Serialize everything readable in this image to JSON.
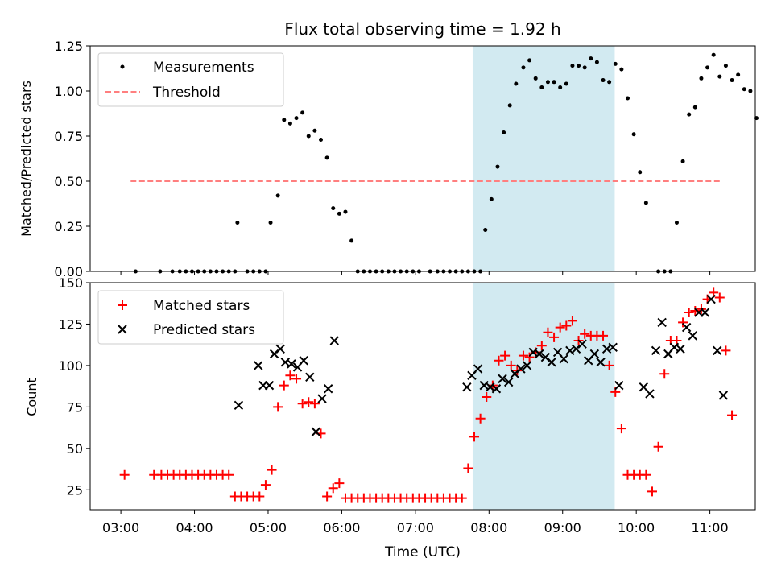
{
  "title": "Flux total observing time = 1.92 h",
  "xlabel": "Time (UTC)",
  "xticks": [
    "03:00",
    "04:00",
    "05:00",
    "06:00",
    "07:00",
    "08:00",
    "09:00",
    "10:00",
    "11:00"
  ],
  "colors": {
    "measurements": "#000000",
    "threshold": "#ff7f7f",
    "matched": "#ff0000",
    "predicted": "#000000",
    "highlight": "#add8e6"
  },
  "chart_data": [
    {
      "type": "scatter",
      "ylabel": "Matched/Predicted stars",
      "ylim": [
        0,
        1.25
      ],
      "yticks": [
        "0.00",
        "0.25",
        "0.50",
        "0.75",
        "1.00",
        "1.25"
      ],
      "xlim": [
        "02:35",
        "11:37"
      ],
      "highlight_span": [
        "07:47",
        "09:42"
      ],
      "legend": {
        "position": "upper-left",
        "entries": [
          "Measurements",
          "Threshold"
        ]
      },
      "threshold": {
        "name": "Threshold",
        "value": 0.5,
        "x_range": [
          "03:08",
          "11:08"
        ]
      },
      "series": [
        {
          "name": "Measurements",
          "points": [
            [
              "03:12",
              0
            ],
            [
              "03:32",
              0
            ],
            [
              "03:42",
              0
            ],
            [
              "03:48",
              0
            ],
            [
              "03:53",
              0
            ],
            [
              "03:58",
              0
            ],
            [
              "04:03",
              0
            ],
            [
              "04:08",
              0
            ],
            [
              "04:13",
              0
            ],
            [
              "04:18",
              0
            ],
            [
              "04:23",
              0
            ],
            [
              "04:28",
              0
            ],
            [
              "04:33",
              0
            ],
            [
              "04:35",
              0.27
            ],
            [
              "04:43",
              0
            ],
            [
              "04:48",
              0
            ],
            [
              "04:53",
              0
            ],
            [
              "04:58",
              0
            ],
            [
              "05:02",
              0.27
            ],
            [
              "05:08",
              0.42
            ],
            [
              "05:13",
              0.84
            ],
            [
              "05:18",
              0.82
            ],
            [
              "05:23",
              0.85
            ],
            [
              "05:28",
              0.88
            ],
            [
              "05:33",
              0.75
            ],
            [
              "05:38",
              0.78
            ],
            [
              "05:43",
              0.73
            ],
            [
              "05:48",
              0.63
            ],
            [
              "05:53",
              0.35
            ],
            [
              "05:58",
              0.32
            ],
            [
              "06:03",
              0.33
            ],
            [
              "06:08",
              0.17
            ],
            [
              "06:13",
              0
            ],
            [
              "06:18",
              0
            ],
            [
              "06:23",
              0
            ],
            [
              "06:28",
              0
            ],
            [
              "06:33",
              0
            ],
            [
              "06:38",
              0
            ],
            [
              "06:43",
              0
            ],
            [
              "06:48",
              0
            ],
            [
              "06:53",
              0
            ],
            [
              "06:58",
              0
            ],
            [
              "07:03",
              0
            ],
            [
              "07:12",
              0
            ],
            [
              "07:18",
              0
            ],
            [
              "07:23",
              0
            ],
            [
              "07:28",
              0
            ],
            [
              "07:33",
              0
            ],
            [
              "07:38",
              0
            ],
            [
              "07:43",
              0
            ],
            [
              "07:48",
              0
            ],
            [
              "07:53",
              0
            ],
            [
              "07:57",
              0.23
            ],
            [
              "08:02",
              0.4
            ],
            [
              "08:07",
              0.58
            ],
            [
              "08:12",
              0.77
            ],
            [
              "08:17",
              0.92
            ],
            [
              "08:22",
              1.04
            ],
            [
              "08:28",
              1.13
            ],
            [
              "08:33",
              1.17
            ],
            [
              "08:38",
              1.07
            ],
            [
              "08:43",
              1.02
            ],
            [
              "08:48",
              1.05
            ],
            [
              "08:53",
              1.05
            ],
            [
              "08:58",
              1.02
            ],
            [
              "09:03",
              1.04
            ],
            [
              "09:08",
              1.14
            ],
            [
              "09:13",
              1.14
            ],
            [
              "09:18",
              1.13
            ],
            [
              "09:23",
              1.18
            ],
            [
              "09:28",
              1.16
            ],
            [
              "09:33",
              1.06
            ],
            [
              "09:38",
              1.05
            ],
            [
              "09:43",
              1.15
            ],
            [
              "09:48",
              1.12
            ],
            [
              "09:53",
              0.96
            ],
            [
              "09:58",
              0.76
            ],
            [
              "10:03",
              0.55
            ],
            [
              "10:08",
              0.38
            ],
            [
              "10:18",
              0
            ],
            [
              "10:23",
              0
            ],
            [
              "10:28",
              0
            ],
            [
              "10:33",
              0.27
            ],
            [
              "10:38",
              0.61
            ],
            [
              "10:43",
              0.87
            ],
            [
              "10:48",
              0.91
            ],
            [
              "10:53",
              1.07
            ],
            [
              "10:58",
              1.13
            ],
            [
              "11:03",
              1.2
            ],
            [
              "11:08",
              1.08
            ],
            [
              "11:13",
              1.14
            ],
            [
              "11:18",
              1.06
            ],
            [
              "11:23",
              1.09
            ],
            [
              "11:28",
              1.01
            ],
            [
              "11:33",
              1.0
            ],
            [
              "11:38",
              0.85
            ]
          ]
        }
      ]
    },
    {
      "type": "scatter",
      "ylabel": "Count",
      "ylim": [
        13,
        150
      ],
      "yticks": [
        "25",
        "50",
        "75",
        "100",
        "125",
        "150"
      ],
      "xlim": [
        "02:35",
        "11:37"
      ],
      "highlight_span": [
        "07:47",
        "09:42"
      ],
      "legend": {
        "position": "upper-left",
        "entries": [
          "Matched stars",
          "Predicted stars"
        ]
      },
      "series": [
        {
          "name": "Matched stars",
          "marker": "+",
          "points": [
            [
              "03:03",
              34
            ],
            [
              "03:27",
              34
            ],
            [
              "03:33",
              34
            ],
            [
              "03:38",
              34
            ],
            [
              "03:43",
              34
            ],
            [
              "03:48",
              34
            ],
            [
              "03:53",
              34
            ],
            [
              "03:58",
              34
            ],
            [
              "04:03",
              34
            ],
            [
              "04:08",
              34
            ],
            [
              "04:13",
              34
            ],
            [
              "04:18",
              34
            ],
            [
              "04:23",
              34
            ],
            [
              "04:28",
              34
            ],
            [
              "04:33",
              21
            ],
            [
              "04:38",
              21
            ],
            [
              "04:43",
              21
            ],
            [
              "04:48",
              21
            ],
            [
              "04:53",
              21
            ],
            [
              "04:58",
              28
            ],
            [
              "05:03",
              37
            ],
            [
              "05:08",
              75
            ],
            [
              "05:13",
              88
            ],
            [
              "05:18",
              94
            ],
            [
              "05:23",
              92
            ],
            [
              "05:28",
              77
            ],
            [
              "05:33",
              78
            ],
            [
              "05:38",
              77
            ],
            [
              "05:43",
              59
            ],
            [
              "05:48",
              21
            ],
            [
              "05:53",
              26
            ],
            [
              "05:58",
              29
            ],
            [
              "06:03",
              20
            ],
            [
              "06:08",
              20
            ],
            [
              "06:13",
              20
            ],
            [
              "06:18",
              20
            ],
            [
              "06:23",
              20
            ],
            [
              "06:28",
              20
            ],
            [
              "06:33",
              20
            ],
            [
              "06:38",
              20
            ],
            [
              "06:43",
              20
            ],
            [
              "06:48",
              20
            ],
            [
              "06:53",
              20
            ],
            [
              "06:58",
              20
            ],
            [
              "07:03",
              20
            ],
            [
              "07:08",
              20
            ],
            [
              "07:13",
              20
            ],
            [
              "07:18",
              20
            ],
            [
              "07:23",
              20
            ],
            [
              "07:28",
              20
            ],
            [
              "07:33",
              20
            ],
            [
              "07:38",
              20
            ],
            [
              "07:43",
              38
            ],
            [
              "07:48",
              57
            ],
            [
              "07:53",
              68
            ],
            [
              "07:58",
              81
            ],
            [
              "08:03",
              88
            ],
            [
              "08:08",
              103
            ],
            [
              "08:13",
              106
            ],
            [
              "08:18",
              100
            ],
            [
              "08:23",
              97
            ],
            [
              "08:28",
              106
            ],
            [
              "08:33",
              105
            ],
            [
              "08:38",
              108
            ],
            [
              "08:43",
              112
            ],
            [
              "08:48",
              120
            ],
            [
              "08:53",
              117
            ],
            [
              "08:58",
              123
            ],
            [
              "09:03",
              124
            ],
            [
              "09:08",
              127
            ],
            [
              "09:13",
              115
            ],
            [
              "09:18",
              119
            ],
            [
              "09:23",
              118
            ],
            [
              "09:28",
              118
            ],
            [
              "09:33",
              118
            ],
            [
              "09:38",
              100
            ],
            [
              "09:43",
              84
            ],
            [
              "09:48",
              62
            ],
            [
              "09:53",
              34
            ],
            [
              "09:58",
              34
            ],
            [
              "10:03",
              34
            ],
            [
              "10:08",
              34
            ],
            [
              "10:13",
              24
            ],
            [
              "10:18",
              51
            ],
            [
              "10:23",
              95
            ],
            [
              "10:28",
              115
            ],
            [
              "10:33",
              115
            ],
            [
              "10:38",
              126
            ],
            [
              "10:43",
              132
            ],
            [
              "10:48",
              133
            ],
            [
              "10:53",
              134
            ],
            [
              "10:58",
              140
            ],
            [
              "11:03",
              144
            ],
            [
              "11:08",
              141
            ],
            [
              "11:13",
              109
            ],
            [
              "11:18",
              70
            ]
          ]
        },
        {
          "name": "Predicted stars",
          "marker": "x",
          "points": [
            [
              "04:36",
              76
            ],
            [
              "04:52",
              100
            ],
            [
              "04:56",
              88
            ],
            [
              "05:01",
              88
            ],
            [
              "05:05",
              107
            ],
            [
              "05:10",
              110
            ],
            [
              "05:14",
              102
            ],
            [
              "05:19",
              101
            ],
            [
              "05:24",
              99
            ],
            [
              "05:29",
              103
            ],
            [
              "05:34",
              93
            ],
            [
              "05:39",
              60
            ],
            [
              "05:44",
              80
            ],
            [
              "05:49",
              86
            ],
            [
              "05:54",
              115
            ],
            [
              "07:42",
              87
            ],
            [
              "07:46",
              94
            ],
            [
              "07:51",
              98
            ],
            [
              "07:56",
              88
            ],
            [
              "08:01",
              87
            ],
            [
              "08:06",
              86
            ],
            [
              "08:11",
              92
            ],
            [
              "08:16",
              90
            ],
            [
              "08:21",
              95
            ],
            [
              "08:26",
              98
            ],
            [
              "08:31",
              100
            ],
            [
              "08:36",
              108
            ],
            [
              "08:41",
              107
            ],
            [
              "08:46",
              105
            ],
            [
              "08:51",
              102
            ],
            [
              "08:56",
              108
            ],
            [
              "09:01",
              104
            ],
            [
              "09:06",
              109
            ],
            [
              "09:11",
              110
            ],
            [
              "09:16",
              113
            ],
            [
              "09:21",
              103
            ],
            [
              "09:26",
              107
            ],
            [
              "09:31",
              102
            ],
            [
              "09:36",
              110
            ],
            [
              "09:41",
              111
            ],
            [
              "09:46",
              88
            ],
            [
              "10:06",
              87
            ],
            [
              "10:11",
              83
            ],
            [
              "10:16",
              109
            ],
            [
              "10:21",
              126
            ],
            [
              "10:26",
              107
            ],
            [
              "10:31",
              111
            ],
            [
              "10:36",
              110
            ],
            [
              "10:41",
              123
            ],
            [
              "10:46",
              118
            ],
            [
              "10:51",
              132
            ],
            [
              "10:56",
              132
            ],
            [
              "11:01",
              140
            ],
            [
              "11:06",
              109
            ],
            [
              "11:11",
              82
            ]
          ]
        }
      ]
    }
  ]
}
